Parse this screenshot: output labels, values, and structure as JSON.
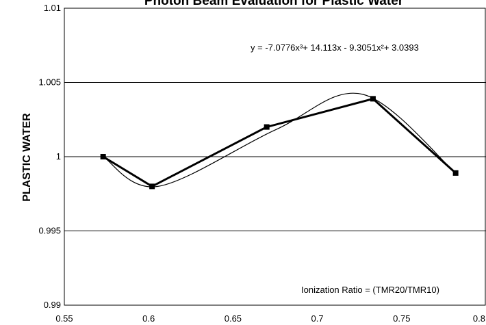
{
  "chart_data": {
    "type": "line",
    "title": "Photon Beam Evaluation for Plastic Water",
    "ylabel": "PLASTIC WATER",
    "xlabel": "Ionization Ratio = (TMR20/TMR10)",
    "xlim": [
      0.55,
      0.8
    ],
    "ylim": [
      0.99,
      1.01
    ],
    "x_ticks": [
      "0.55",
      "0.6",
      "0.65",
      "0.7",
      "0.75",
      "0.8"
    ],
    "y_ticks": [
      "0.99",
      "0.995",
      "1",
      "1.005",
      "1.01"
    ],
    "gridlines": "horizontal",
    "series": [
      {
        "values_x": [
          0.573,
          0.602,
          0.67,
          0.733,
          0.782
        ],
        "values_y": [
          1.0,
          0.998,
          1.002,
          1.0039,
          0.9989
        ]
      }
    ],
    "trendline": {
      "label": "y = -7.0776x³+ 14.113x  - 9.3051x²+ 3.0393",
      "type": "polynomial-3",
      "x_range": [
        0.573,
        0.782
      ],
      "passes_through": [
        [
          0.573,
          1.0
        ],
        [
          0.6055,
          0.998
        ],
        [
          0.675,
          1.0018
        ],
        [
          0.727,
          1.0042
        ],
        [
          0.782,
          0.9989
        ]
      ]
    }
  }
}
